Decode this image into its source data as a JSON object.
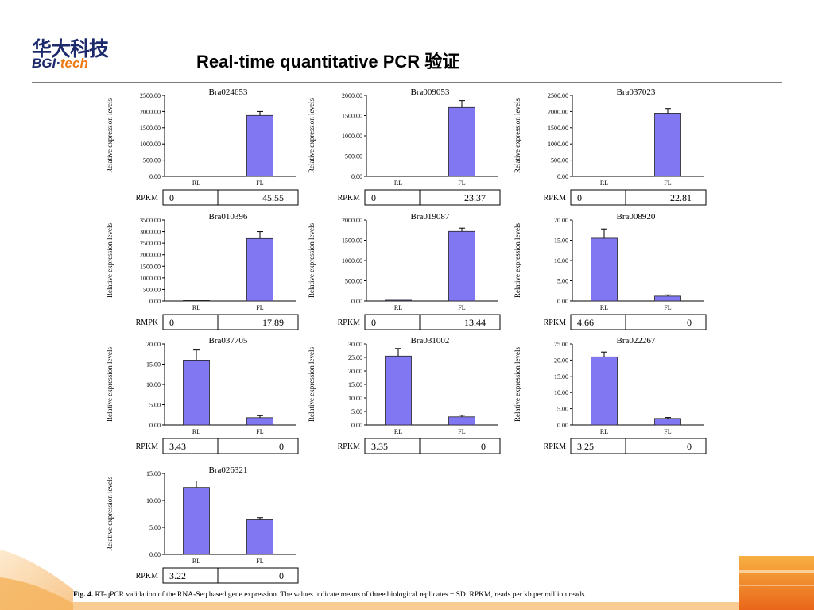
{
  "header": {
    "logo_cn": "华大科技",
    "logo_en_left": "BGI·",
    "logo_en_right": "tech",
    "title": "Real-time quantitative PCR 验证"
  },
  "colors": {
    "bar": "#8177f2",
    "brand_blue": "#1d2a6b",
    "brand_orange": "#ee7a14"
  },
  "figure": {
    "caption_bold": "Fig. 4.",
    "caption_text": " RT-qPCR validation of the RNA-Seq based gene expression. The values indicate means of three biological replicates ± SD. RPKM, reads per kb per million reads."
  },
  "chart_data": [
    {
      "type": "bar",
      "title": "Bra024653",
      "ylabel": "Relative expression levels",
      "categories": [
        "RL",
        "FL"
      ],
      "values": [
        0,
        1880
      ],
      "errors": [
        0,
        120
      ],
      "ylim": [
        0,
        2500
      ],
      "yticks": [
        "0.00",
        "500.00",
        "1000.00",
        "1500.00",
        "2000.00",
        "2500.00"
      ],
      "rpkm_label": "RPKM",
      "rpkm_values": [
        "0",
        "45.55"
      ]
    },
    {
      "type": "bar",
      "title": "Bra009053",
      "ylabel": "Relative expression levels",
      "categories": [
        "RL",
        "FL"
      ],
      "values": [
        0,
        1700
      ],
      "errors": [
        0,
        170
      ],
      "ylim": [
        0,
        2000
      ],
      "yticks": [
        "0.00",
        "500.00",
        "1000.00",
        "1500.00",
        "2000.00"
      ],
      "rpkm_label": "RPKM",
      "rpkm_values": [
        "0",
        "23.37"
      ]
    },
    {
      "type": "bar",
      "title": "Bra037023",
      "ylabel": "Relative expression levels",
      "categories": [
        "RL",
        "FL"
      ],
      "values": [
        0,
        1950
      ],
      "errors": [
        0,
        140
      ],
      "ylim": [
        0,
        2500
      ],
      "yticks": [
        "0.00",
        "500.00",
        "1000.00",
        "1500.00",
        "2000.00",
        "2500.00"
      ],
      "rpkm_label": "RPKM",
      "rpkm_values": [
        "0",
        "22.81"
      ]
    },
    {
      "type": "bar",
      "title": "Bra010396",
      "ylabel": "Relative expression levels",
      "categories": [
        "RL",
        "FL"
      ],
      "values": [
        20,
        2700
      ],
      "errors": [
        0,
        300
      ],
      "ylim": [
        0,
        3500
      ],
      "yticks": [
        "0.00",
        "500.00",
        "1000.00",
        "1500.00",
        "2000.00",
        "2500.00",
        "3000.00",
        "3500.00"
      ],
      "rpkm_label": "RMPK",
      "rpkm_values": [
        "0",
        "17.89"
      ]
    },
    {
      "type": "bar",
      "title": "Bra019087",
      "ylabel": "Relative expression levels",
      "categories": [
        "RL",
        "FL"
      ],
      "values": [
        20,
        1720
      ],
      "errors": [
        0,
        80
      ],
      "ylim": [
        0,
        2000
      ],
      "yticks": [
        "0.00",
        "500.00",
        "1000.00",
        "1500.00",
        "2000.00"
      ],
      "rpkm_label": "RPKM",
      "rpkm_values": [
        "0",
        "13.44"
      ]
    },
    {
      "type": "bar",
      "title": "Bra008920",
      "ylabel": "Relative expression levels",
      "categories": [
        "RL",
        "FL"
      ],
      "values": [
        15.5,
        1.2
      ],
      "errors": [
        2.3,
        0.3
      ],
      "ylim": [
        0,
        20
      ],
      "yticks": [
        "0.00",
        "5.00",
        "10.00",
        "15.00",
        "20.00"
      ],
      "rpkm_label": "RPKM",
      "rpkm_values": [
        "4.66",
        "0"
      ]
    },
    {
      "type": "bar",
      "title": "Bra037705",
      "ylabel": "Relative expression levels",
      "categories": [
        "RL",
        "FL"
      ],
      "values": [
        16,
        1.8
      ],
      "errors": [
        2.5,
        0.5
      ],
      "ylim": [
        0,
        20
      ],
      "yticks": [
        "0.00",
        "5.00",
        "10.00",
        "15.00",
        "20.00"
      ],
      "rpkm_label": "RPKM",
      "rpkm_values": [
        "3.43",
        "0"
      ]
    },
    {
      "type": "bar",
      "title": "Bra031002",
      "ylabel": "Relative expression levels",
      "categories": [
        "RL",
        "FL"
      ],
      "values": [
        25.5,
        3
      ],
      "errors": [
        2.8,
        0.6
      ],
      "ylim": [
        0,
        30
      ],
      "yticks": [
        "0.00",
        "5.00",
        "10.00",
        "15.00",
        "20.00",
        "25.00",
        "30.00"
      ],
      "rpkm_label": "RPKM",
      "rpkm_values": [
        "3.35",
        "0"
      ]
    },
    {
      "type": "bar",
      "title": "Bra022267",
      "ylabel": "Relative expression levels",
      "categories": [
        "RL",
        "FL"
      ],
      "values": [
        21,
        2
      ],
      "errors": [
        1.5,
        0.3
      ],
      "ylim": [
        0,
        25
      ],
      "yticks": [
        "0.00",
        "5.00",
        "10.00",
        "15.00",
        "20.00",
        "25.00"
      ],
      "rpkm_label": "RPKM",
      "rpkm_values": [
        "3.25",
        "0"
      ]
    },
    {
      "type": "bar",
      "title": "Bra026321",
      "ylabel": "Relative expression levels",
      "categories": [
        "RL",
        "FL"
      ],
      "values": [
        12.4,
        6.4
      ],
      "errors": [
        1.2,
        0.4
      ],
      "ylim": [
        0,
        15
      ],
      "yticks": [
        "0.00",
        "5.00",
        "10.00",
        "15.00"
      ],
      "rpkm_label": "RPKM",
      "rpkm_values": [
        "3.22",
        "0"
      ]
    }
  ]
}
